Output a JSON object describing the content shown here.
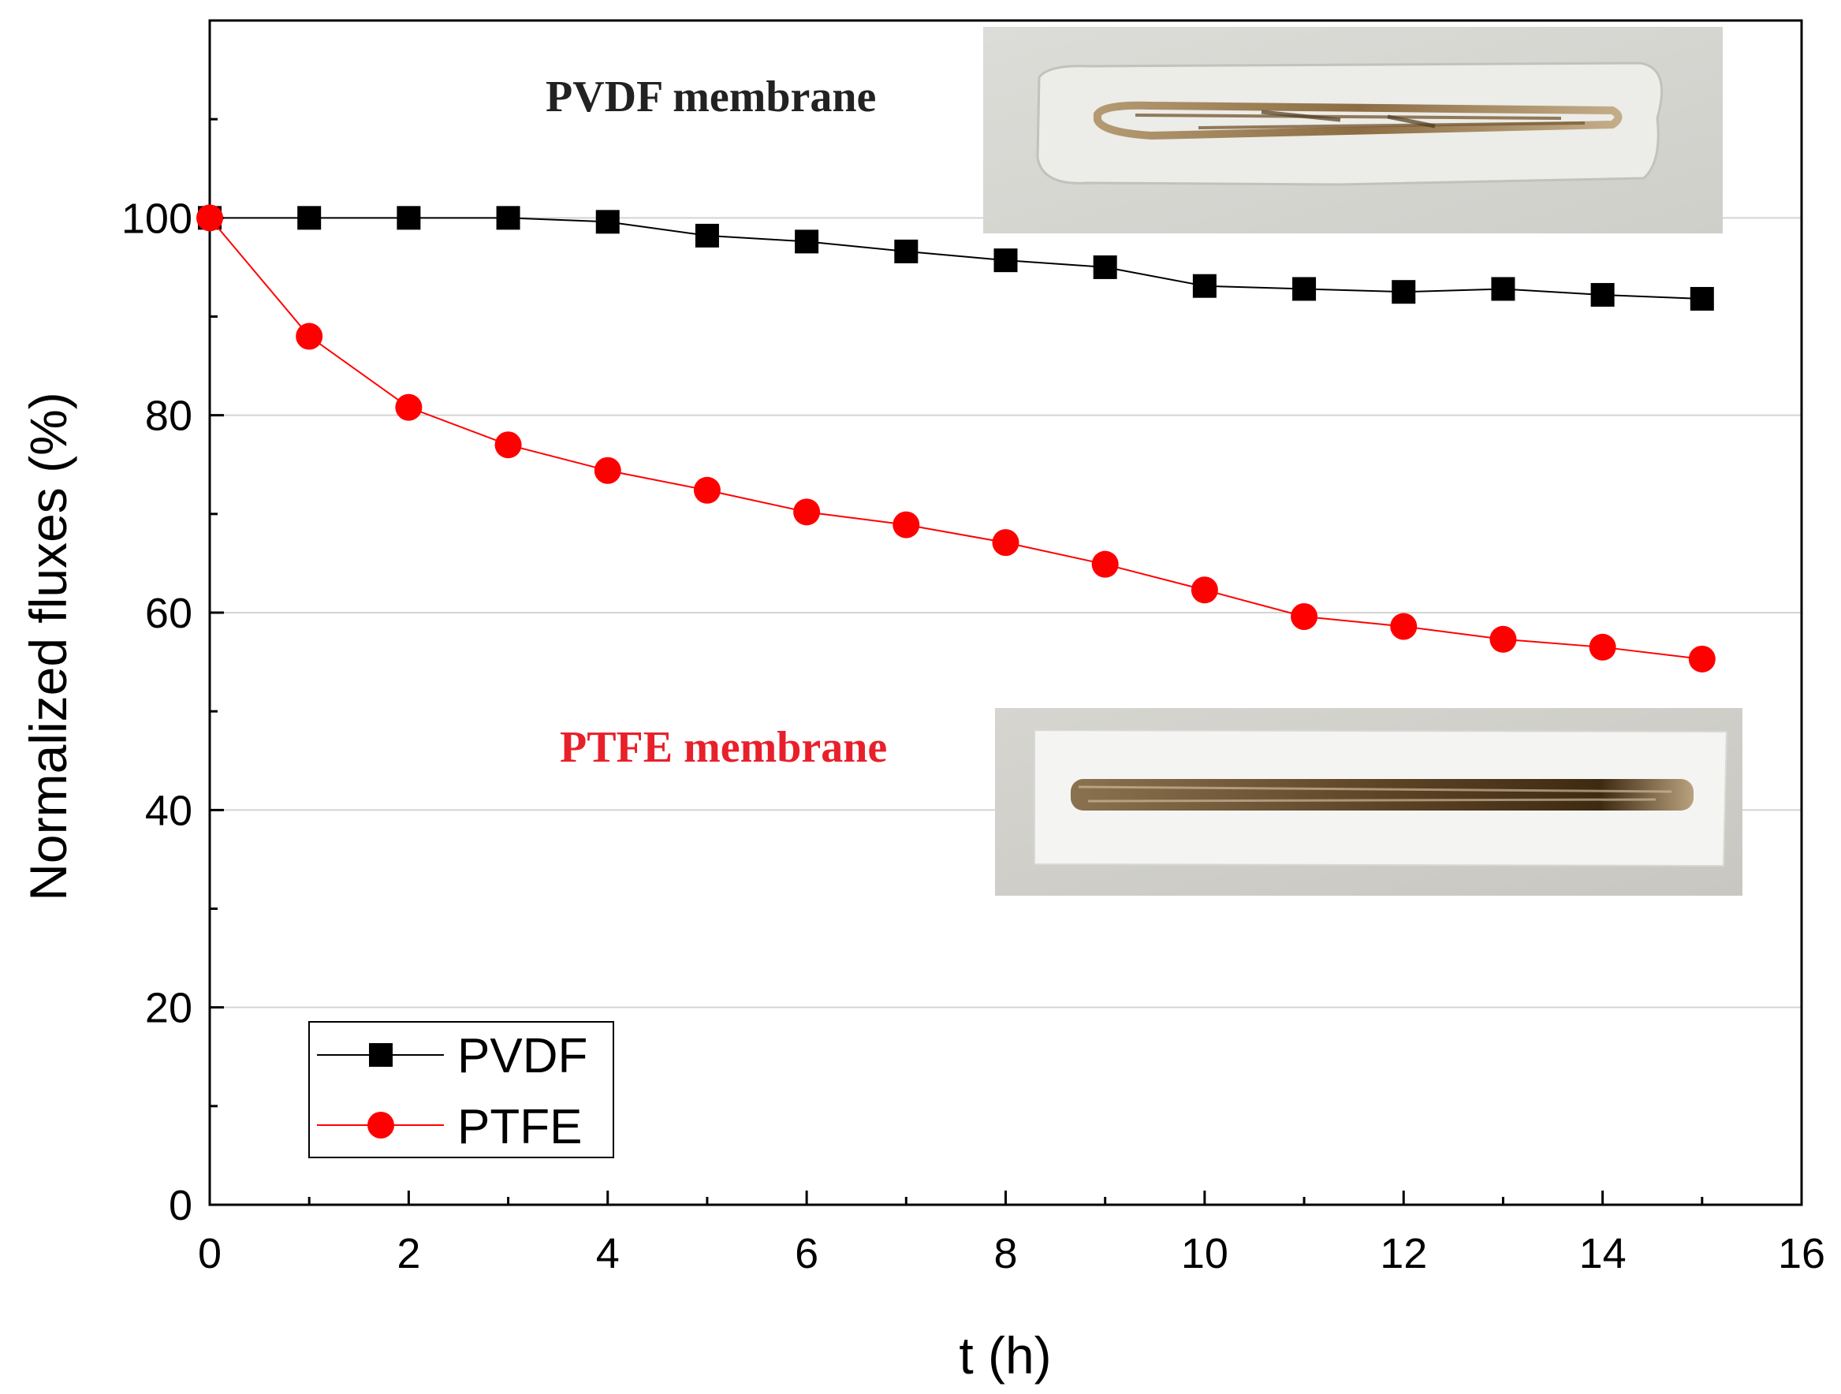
{
  "chart_data": {
    "type": "line",
    "title": "",
    "xlabel": "t (h)",
    "ylabel": "Normalized fluxes (%)",
    "xlim": [
      0,
      16
    ],
    "ylim": [
      0,
      120
    ],
    "xticks": [
      0,
      2,
      4,
      6,
      8,
      10,
      12,
      14,
      16
    ],
    "yticks": [
      0,
      20,
      40,
      60,
      80,
      100
    ],
    "grid": "horizontal",
    "legend_position": "bottom-left",
    "x": [
      0,
      1,
      2,
      3,
      4,
      5,
      6,
      7,
      8,
      9,
      10,
      11,
      12,
      13,
      14,
      15
    ],
    "series": [
      {
        "name": "PVDF",
        "color": "#000000",
        "marker": "square",
        "values": [
          100,
          100,
          100,
          100,
          99.6,
          98.2,
          97.6,
          96.6,
          95.7,
          95.0,
          93.1,
          92.8,
          92.5,
          92.8,
          92.2,
          91.8
        ]
      },
      {
        "name": "PTFE",
        "color": "#ff0000",
        "marker": "circle",
        "values": [
          100,
          88.0,
          80.8,
          77.0,
          74.4,
          72.4,
          70.2,
          68.9,
          67.1,
          64.9,
          62.3,
          59.6,
          58.6,
          57.3,
          56.5,
          55.3
        ]
      }
    ],
    "annotations": [
      {
        "text": "PVDF membrane",
        "color": "#222222"
      },
      {
        "text": "PTFE membrane",
        "color": "#e8202a"
      }
    ]
  }
}
